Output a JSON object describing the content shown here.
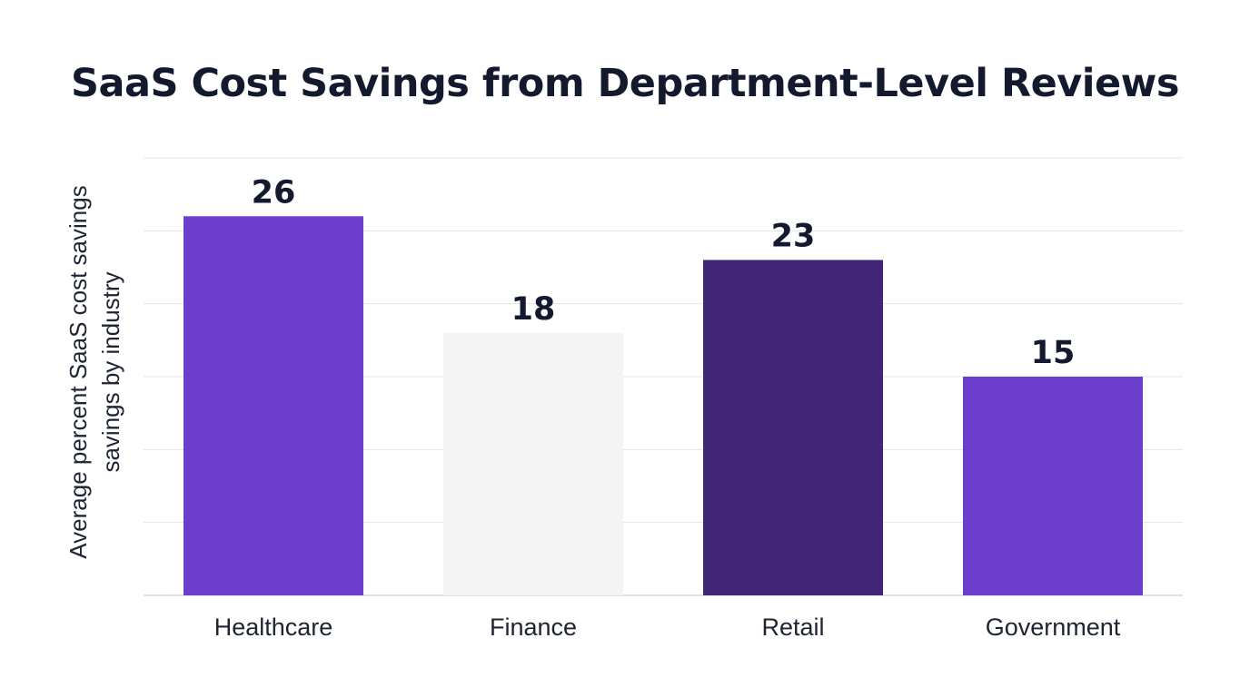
{
  "chart_data": {
    "type": "bar",
    "title": "SaaS Cost Savings from Department-Level Reviews",
    "ylabel_lines": [
      "Average percent SaaS cost savings",
      "savings by industry"
    ],
    "xlabel": "",
    "categories": [
      "Healthcare",
      "Finance",
      "Retail",
      "Government"
    ],
    "values": [
      26,
      18,
      23,
      15
    ],
    "value_labels": [
      "26",
      "18",
      "23",
      "15"
    ],
    "colors": [
      "#6b3fcc",
      "#f4f4f4",
      "#412677",
      "#6b3fcc"
    ],
    "ylim": [
      0,
      30
    ],
    "gridlines": [
      0,
      5,
      10,
      15,
      20,
      25,
      30
    ],
    "grid": true,
    "legend": "none"
  }
}
